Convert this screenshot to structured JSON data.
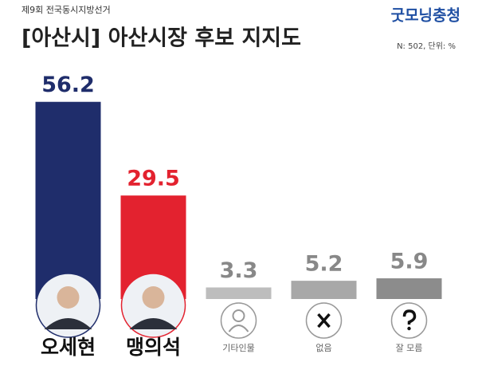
{
  "chart_data": {
    "type": "bar",
    "subtitle": "제9회 전국동시지방선거",
    "title": "[아산시] 아산시장 후보 지지도",
    "brand": "굿모닝충청",
    "note": "N: 502, 단위: %",
    "categories": [
      "오세현",
      "맹의석",
      "기타인물",
      "없음",
      "잘 모름"
    ],
    "values": [
      56.2,
      29.5,
      3.3,
      5.2,
      5.9
    ],
    "colors": [
      "#1f2d6b",
      "#e3222f",
      "#bdbdbd",
      "#a8a8a8",
      "#8c8c8c"
    ]
  }
}
